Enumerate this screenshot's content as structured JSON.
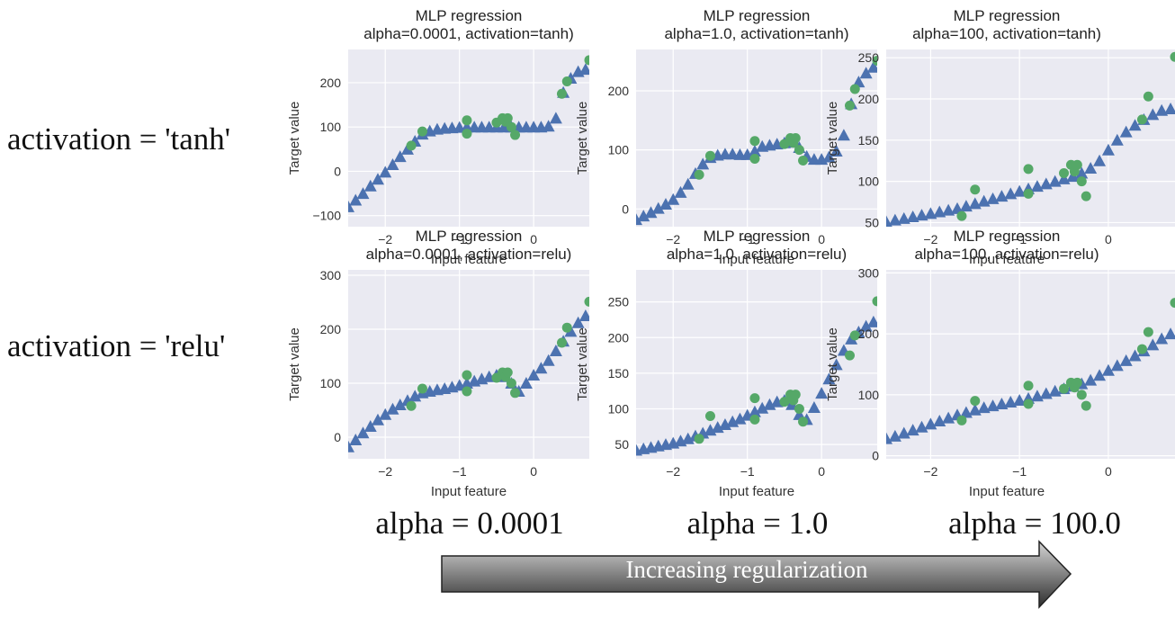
{
  "row_labels": [
    "activation = 'tanh'",
    "activation = 'relu'"
  ],
  "column_labels": [
    "alpha = 0.0001",
    "alpha = 1.0",
    "alpha = 100.0"
  ],
  "arrow_label": "Increasing regularization",
  "colors": {
    "prediction": "#4c72b0",
    "sample": "#55a868",
    "plot_bg": "#eaeaf2",
    "grid": "#ffffff"
  },
  "samples": {
    "x": [
      -1.65,
      -1.5,
      -0.9,
      -0.9,
      -0.5,
      -0.42,
      -0.38,
      -0.35,
      -0.3,
      -0.25,
      0.38,
      0.45,
      0.75
    ],
    "y": [
      58,
      90,
      85,
      115,
      110,
      120,
      112,
      120,
      100,
      82,
      175,
      203,
      251
    ]
  },
  "chart_data": [
    {
      "type": "scatter",
      "title": "MLP regression\nalpha=0.0001, activation=tanh)",
      "xlabel": "Input feature",
      "ylabel": "Target value",
      "xlim": [
        -2.5,
        0.75
      ],
      "ylim": [
        -125,
        275
      ],
      "xticks": [
        -2,
        -1,
        0
      ],
      "yticks": [
        -100,
        0,
        100,
        200
      ],
      "grid": true,
      "series": [
        {
          "marker": "triangle",
          "x": [
            -2.5,
            -2.4,
            -2.3,
            -2.2,
            -2.1,
            -2.0,
            -1.9,
            -1.8,
            -1.7,
            -1.6,
            -1.5,
            -1.4,
            -1.3,
            -1.2,
            -1.1,
            -1.0,
            -0.9,
            -0.8,
            -0.7,
            -0.6,
            -0.5,
            -0.4,
            -0.3,
            -0.2,
            -0.1,
            0.0,
            0.1,
            0.2,
            0.3,
            0.4,
            0.5,
            0.6,
            0.7
          ],
          "y": [
            -80,
            -65,
            -50,
            -33,
            -18,
            -2,
            15,
            33,
            50,
            68,
            84,
            91,
            95,
            97,
            98,
            99,
            100,
            100,
            100,
            100,
            100,
            100,
            100,
            100,
            100,
            100,
            100,
            102,
            120,
            178,
            210,
            225,
            230
          ]
        }
      ]
    },
    {
      "type": "scatter",
      "title": "MLP regression\nalpha=1.0, activation=tanh)",
      "xlabel": "Input feature",
      "ylabel": "Target value",
      "xlim": [
        -2.5,
        0.75
      ],
      "ylim": [
        -30,
        270
      ],
      "xticks": [
        -2,
        -1,
        0
      ],
      "yticks": [
        0,
        100,
        200
      ],
      "grid": true,
      "series": [
        {
          "marker": "triangle",
          "x": [
            -2.5,
            -2.4,
            -2.3,
            -2.2,
            -2.1,
            -2.0,
            -1.9,
            -1.8,
            -1.7,
            -1.6,
            -1.5,
            -1.4,
            -1.3,
            -1.2,
            -1.1,
            -1.0,
            -0.9,
            -0.8,
            -0.7,
            -0.6,
            -0.5,
            -0.4,
            -0.3,
            -0.2,
            -0.1,
            0.0,
            0.1,
            0.2,
            0.3,
            0.4,
            0.5,
            0.6,
            0.7
          ],
          "y": [
            -18,
            -12,
            -6,
            1,
            8,
            16,
            28,
            42,
            60,
            76,
            87,
            91,
            93,
            93,
            92,
            92,
            98,
            106,
            108,
            110,
            112,
            113,
            104,
            89,
            84,
            84,
            88,
            98,
            125,
            178,
            215,
            230,
            240
          ]
        }
      ]
    },
    {
      "type": "scatter",
      "title": "MLP regression\nalpha=100, activation=tanh)",
      "xlabel": "Input feature",
      "ylabel": "Target value",
      "xlim": [
        -2.5,
        0.75
      ],
      "ylim": [
        45,
        260
      ],
      "xticks": [
        -2,
        -1,
        0
      ],
      "yticks": [
        50,
        100,
        150,
        200,
        250
      ],
      "grid": true,
      "series": [
        {
          "marker": "triangle",
          "x": [
            -2.5,
            -2.4,
            -2.3,
            -2.2,
            -2.1,
            -2.0,
            -1.9,
            -1.8,
            -1.7,
            -1.6,
            -1.5,
            -1.4,
            -1.3,
            -1.2,
            -1.1,
            -1.0,
            -0.9,
            -0.8,
            -0.7,
            -0.6,
            -0.5,
            -0.4,
            -0.3,
            -0.2,
            -0.1,
            0.0,
            0.1,
            0.2,
            0.3,
            0.4,
            0.5,
            0.6,
            0.7
          ],
          "y": [
            51,
            53,
            55,
            57,
            59,
            61,
            63,
            65,
            67,
            70,
            73,
            76,
            79,
            82,
            85,
            88,
            91,
            94,
            97,
            100,
            103,
            106,
            110,
            116,
            125,
            138,
            150,
            160,
            168,
            175,
            181,
            186,
            188
          ]
        }
      ]
    },
    {
      "type": "scatter",
      "title": "MLP regression\nalpha=0.0001, activation=relu)",
      "xlabel": "Input feature",
      "ylabel": "Target value",
      "xlim": [
        -2.5,
        0.75
      ],
      "ylim": [
        -40,
        310
      ],
      "xticks": [
        -2,
        -1,
        0
      ],
      "yticks": [
        0,
        100,
        200,
        300
      ],
      "grid": true,
      "series": [
        {
          "marker": "triangle",
          "x": [
            -2.5,
            -2.4,
            -2.3,
            -2.2,
            -2.1,
            -2.0,
            -1.9,
            -1.8,
            -1.7,
            -1.6,
            -1.5,
            -1.4,
            -1.3,
            -1.2,
            -1.1,
            -1.0,
            -0.9,
            -0.8,
            -0.7,
            -0.6,
            -0.5,
            -0.4,
            -0.3,
            -0.2,
            -0.1,
            0.0,
            0.1,
            0.2,
            0.3,
            0.4,
            0.5,
            0.6,
            0.7
          ],
          "y": [
            -18,
            -5,
            8,
            20,
            32,
            42,
            52,
            60,
            68,
            76,
            82,
            85,
            88,
            90,
            93,
            96,
            100,
            104,
            108,
            112,
            115,
            112,
            100,
            85,
            100,
            115,
            128,
            142,
            160,
            178,
            196,
            212,
            225
          ]
        }
      ]
    },
    {
      "type": "scatter",
      "title": "MLP regression\nalpha=1.0, activation=relu)",
      "xlabel": "Input feature",
      "ylabel": "Target value",
      "xlim": [
        -2.5,
        0.75
      ],
      "ylim": [
        30,
        295
      ],
      "xticks": [
        -2,
        -1,
        0
      ],
      "yticks": [
        50,
        100,
        150,
        200,
        250
      ],
      "grid": true,
      "series": [
        {
          "marker": "triangle",
          "x": [
            -2.5,
            -2.4,
            -2.3,
            -2.2,
            -2.1,
            -2.0,
            -1.9,
            -1.8,
            -1.7,
            -1.6,
            -1.5,
            -1.4,
            -1.3,
            -1.2,
            -1.1,
            -1.0,
            -0.9,
            -0.8,
            -0.7,
            -0.6,
            -0.5,
            -0.4,
            -0.3,
            -0.2,
            -0.1,
            0.0,
            0.1,
            0.2,
            0.3,
            0.4,
            0.5,
            0.6,
            0.7
          ],
          "y": [
            42,
            44,
            46,
            48,
            50,
            52,
            55,
            58,
            62,
            66,
            70,
            74,
            78,
            82,
            86,
            91,
            96,
            101,
            106,
            110,
            112,
            106,
            92,
            85,
            102,
            122,
            142,
            162,
            182,
            198,
            208,
            216,
            222
          ]
        }
      ]
    },
    {
      "type": "scatter",
      "title": "MLP regression\nalpha=100, activation=relu)",
      "xlabel": "Input feature",
      "ylabel": "Target value",
      "xlim": [
        -2.5,
        0.75
      ],
      "ylim": [
        -5,
        305
      ],
      "xticks": [
        -2,
        -1,
        0
      ],
      "yticks": [
        0,
        100,
        200,
        300
      ],
      "grid": true,
      "series": [
        {
          "marker": "triangle",
          "x": [
            -2.5,
            -2.4,
            -2.3,
            -2.2,
            -2.1,
            -2.0,
            -1.9,
            -1.8,
            -1.7,
            -1.6,
            -1.5,
            -1.4,
            -1.3,
            -1.2,
            -1.1,
            -1.0,
            -0.9,
            -0.8,
            -0.7,
            -0.6,
            -0.5,
            -0.4,
            -0.3,
            -0.2,
            -0.1,
            0.0,
            0.1,
            0.2,
            0.3,
            0.4,
            0.5,
            0.6,
            0.7
          ],
          "y": [
            28,
            32,
            37,
            42,
            47,
            52,
            57,
            62,
            67,
            71,
            75,
            79,
            82,
            85,
            88,
            91,
            94,
            98,
            102,
            106,
            110,
            114,
            118,
            124,
            132,
            140,
            148,
            156,
            164,
            172,
            182,
            192,
            200
          ]
        }
      ]
    }
  ]
}
